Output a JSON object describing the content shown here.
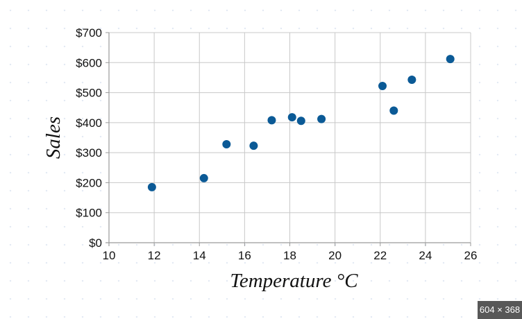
{
  "chart_data": {
    "type": "scatter",
    "xlabel": "Temperature °C",
    "ylabel": "Sales",
    "xlim": [
      10,
      26
    ],
    "ylim": [
      0,
      700
    ],
    "xticks": [
      10,
      12,
      14,
      16,
      18,
      20,
      22,
      24,
      26
    ],
    "yticks": [
      0,
      100,
      200,
      300,
      400,
      500,
      600,
      700
    ],
    "ytick_labels": [
      "$0",
      "$100",
      "$200",
      "$300",
      "$400",
      "$500",
      "$600",
      "$700"
    ],
    "grid": true,
    "marker_color": "#0b5a96",
    "points": [
      {
        "x": 11.9,
        "y": 185
      },
      {
        "x": 14.2,
        "y": 215
      },
      {
        "x": 15.2,
        "y": 328
      },
      {
        "x": 16.4,
        "y": 323
      },
      {
        "x": 17.2,
        "y": 408
      },
      {
        "x": 18.1,
        "y": 418
      },
      {
        "x": 18.5,
        "y": 406
      },
      {
        "x": 19.4,
        "y": 412
      },
      {
        "x": 22.1,
        "y": 522
      },
      {
        "x": 22.6,
        "y": 440
      },
      {
        "x": 23.4,
        "y": 543
      },
      {
        "x": 25.1,
        "y": 612
      }
    ]
  },
  "image_size_badge": "604 × 368"
}
